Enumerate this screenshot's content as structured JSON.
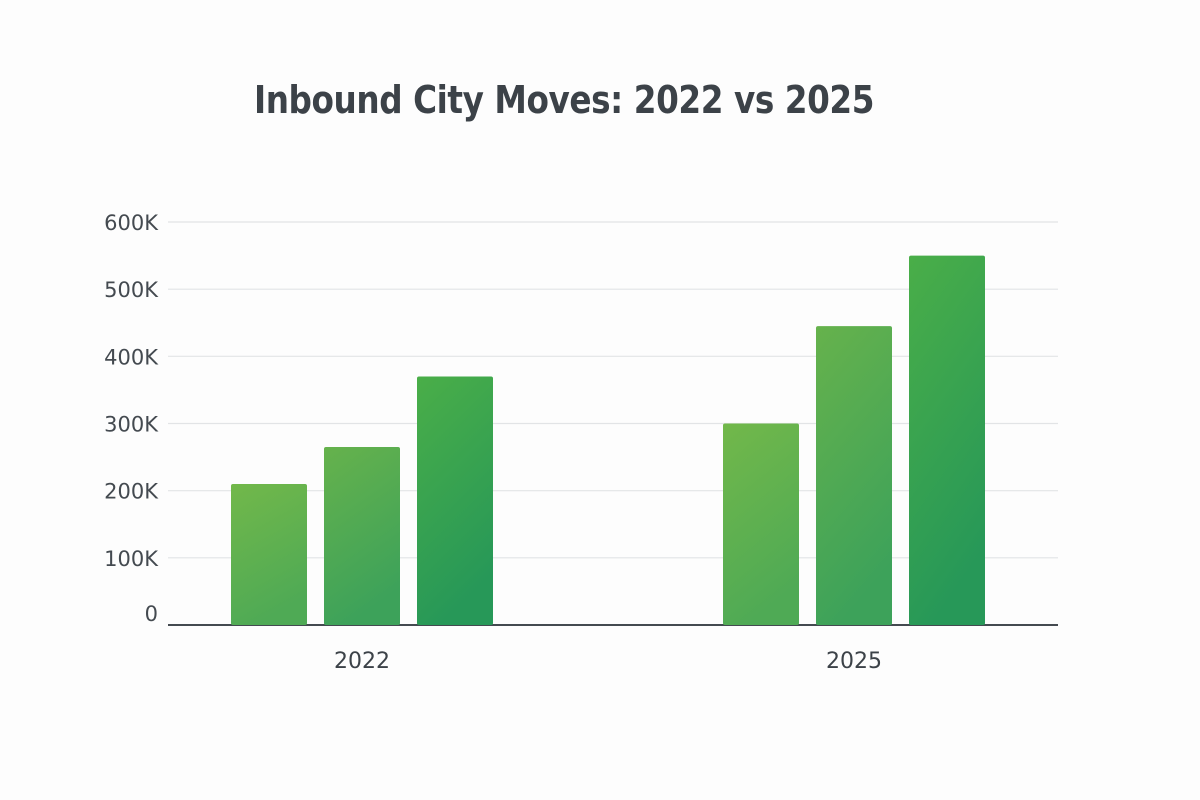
{
  "chart_data": {
    "type": "bar",
    "title": "Inbound City Moves: 2022 vs 2025",
    "xlabel": "",
    "ylabel": "",
    "categories": [
      "2022",
      "2025"
    ],
    "series": [
      {
        "values": [
          210000,
          300000
        ]
      },
      {
        "values": [
          265000,
          445000
        ]
      },
      {
        "values": [
          370000,
          550000
        ]
      }
    ],
    "ylim": [
      0,
      600000
    ],
    "yticks": [
      0,
      100000,
      200000,
      300000,
      400000,
      500000,
      600000
    ],
    "ytick_labels": [
      "0",
      "100K",
      "200K",
      "300K",
      "400K",
      "500K",
      "600K"
    ],
    "grid": true,
    "legend": "none",
    "colors": {
      "bar_light": "#6db84a",
      "bar_dark": "#2a9a5a",
      "grid": "#e2e4e6",
      "axis": "#444a50"
    }
  }
}
